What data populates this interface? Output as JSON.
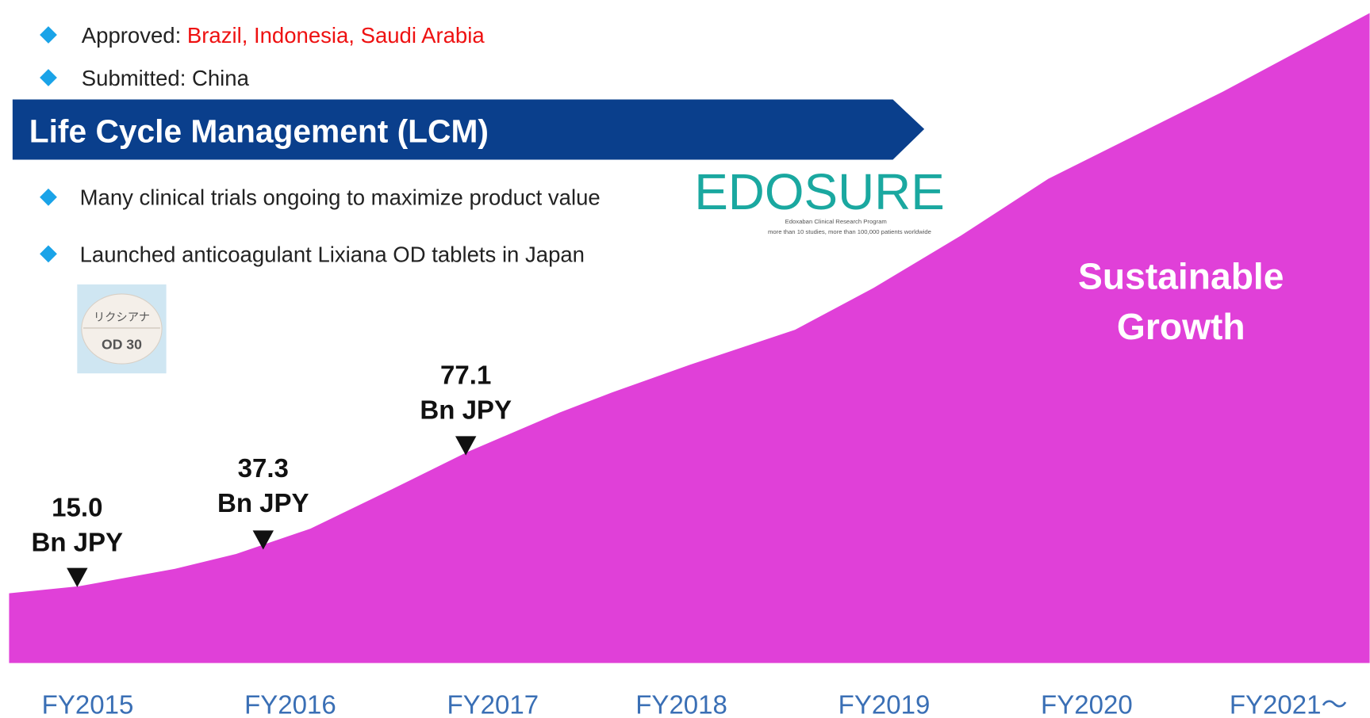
{
  "status_bullets": [
    {
      "label": "Approved:",
      "detail": "Brazil, Indonesia, Saudi Arabia"
    },
    {
      "label": "Submitted:",
      "detail": "China"
    }
  ],
  "banner": "Life Cycle Management (LCM)",
  "lcm_bullets": [
    "Many clinical trials ongoing to maximize product value",
    "Launched anticoagulant Lixiana OD tablets in Japan"
  ],
  "logo": {
    "name": "EDOSURE",
    "subtitle": "Edoxaban Clinical Research Program",
    "note": "more than 10 studies, more than 100,000 patients worldwide"
  },
  "pill": {
    "brand": "リクシアナ",
    "dose": "OD 30"
  },
  "annotations": [
    {
      "value": "15.0",
      "unit": "Bn JPY"
    },
    {
      "value": "37.3",
      "unit": "Bn JPY"
    },
    {
      "value": "77.1",
      "unit": "Bn JPY"
    }
  ],
  "growth_label": [
    "Sustainable",
    "Growth"
  ],
  "years": [
    "FY2015",
    "FY2016",
    "FY2017",
    "FY2018",
    "FY2019",
    "FY2020",
    "FY2021～"
  ]
}
